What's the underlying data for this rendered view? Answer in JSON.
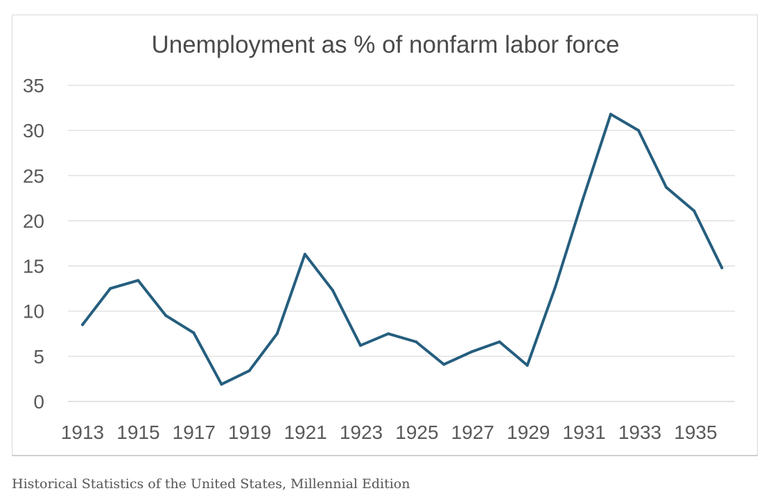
{
  "caption": "Historical Statistics of the United States, Millennial Edition",
  "chart_data": {
    "type": "line",
    "title": "Unemployment as % of nonfarm labor force",
    "xlabel": "",
    "ylabel": "",
    "x": [
      1913,
      1914,
      1915,
      1916,
      1917,
      1918,
      1919,
      1920,
      1921,
      1922,
      1923,
      1924,
      1925,
      1926,
      1927,
      1928,
      1929,
      1930,
      1931,
      1932,
      1933,
      1934,
      1935,
      1936
    ],
    "x_tick_labels": [
      "1913",
      "1915",
      "1917",
      "1919",
      "1921",
      "1923",
      "1925",
      "1927",
      "1929",
      "1931",
      "1933",
      "1935"
    ],
    "series": [
      {
        "values": [
          8.5,
          12.5,
          13.4,
          9.5,
          7.6,
          1.9,
          3.4,
          7.5,
          16.3,
          12.3,
          6.2,
          7.5,
          6.6,
          4.1,
          5.5,
          6.6,
          4.0,
          12.6,
          22.4,
          31.8,
          30.0,
          23.7,
          21.1,
          14.8
        ],
        "color": "#255e7e"
      }
    ],
    "ylim": [
      0,
      35
    ],
    "y_ticks": [
      0,
      5,
      10,
      15,
      20,
      25,
      30,
      35
    ],
    "grid": true,
    "legend": "none"
  }
}
